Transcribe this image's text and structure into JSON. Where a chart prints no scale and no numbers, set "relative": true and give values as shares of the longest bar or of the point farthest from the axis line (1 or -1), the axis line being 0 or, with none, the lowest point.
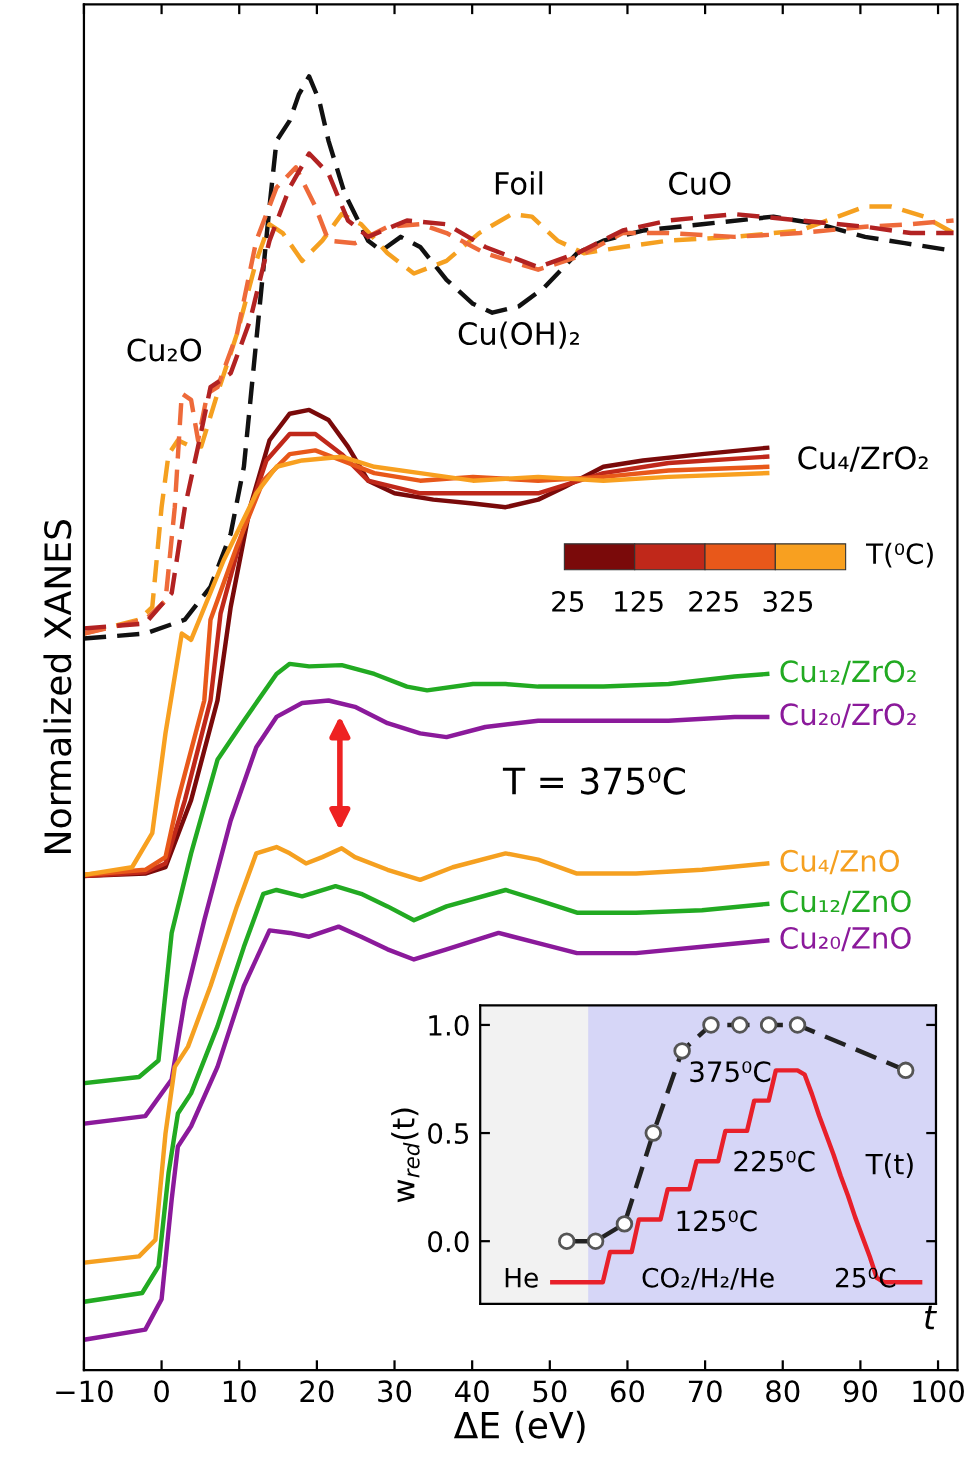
{
  "chart_data": [
    {
      "type": "line",
      "xlabel": "ΔE (eV)",
      "ylabel": "Normalized XANES",
      "relative": true,
      "tick_labels": "x",
      "xlim": [
        -10,
        102.5
      ],
      "xticks": [
        {
          "value": -10,
          "label": "−10"
        },
        0,
        10,
        20,
        30,
        40,
        50,
        60,
        70,
        80,
        90,
        100
      ],
      "series": [
        {
          "color": "#111111",
          "line_style": "dashed",
          "x": [
            -10,
            -2.1,
            3.0,
            6.3,
            8.9,
            10.6,
            12.2,
            13.9,
            14.8,
            16.5,
            17.7,
            19.0,
            20.3,
            21.5,
            23.6,
            26.6,
            28.3,
            30.8,
            33.3,
            36.7,
            40.1,
            42.6,
            46.0,
            49.3,
            53.5,
            56.9,
            62.0,
            69.6,
            78.8,
            84.7,
            90.6,
            95.7,
            102
          ],
          "values": [
            0.555,
            0.559,
            0.57,
            0.596,
            0.638,
            0.691,
            0.791,
            0.897,
            0.949,
            0.965,
            0.986,
            1.0,
            0.981,
            0.949,
            0.907,
            0.87,
            0.862,
            0.873,
            0.865,
            0.839,
            0.82,
            0.813,
            0.818,
            0.833,
            0.86,
            0.87,
            0.878,
            0.883,
            0.889,
            0.883,
            0.873,
            0.868,
            0.862
          ]
        },
        {
          "color": "#f5a020",
          "line_style": "dashed",
          "x": [
            -10,
            -2.9,
            -1.2,
            0.0,
            0.9,
            2.1,
            3.8,
            5.1,
            7.2,
            9.7,
            12.2,
            13.9,
            15.6,
            18.1,
            20.7,
            23.2,
            25.7,
            29.1,
            32.5,
            36.7,
            40.9,
            45.1,
            47.7,
            51.0,
            54.4,
            59.4,
            65.3,
            73.8,
            82.2,
            90.6,
            94.0,
            98.2,
            102
          ],
          "values": [
            0.559,
            0.57,
            0.58,
            0.659,
            0.701,
            0.712,
            0.707,
            0.707,
            0.749,
            0.796,
            0.854,
            0.883,
            0.876,
            0.854,
            0.87,
            0.891,
            0.883,
            0.86,
            0.844,
            0.854,
            0.876,
            0.891,
            0.889,
            0.87,
            0.86,
            0.865,
            0.87,
            0.873,
            0.878,
            0.897,
            0.897,
            0.889,
            0.876
          ]
        },
        {
          "color": "#ee6a3a",
          "line_style": "dashed",
          "x": [
            -10,
            -2.1,
            0.5,
            1.7,
            2.6,
            3.8,
            4.7,
            5.9,
            7.2,
            9.7,
            12.2,
            14.8,
            17.3,
            19.8,
            21.5,
            24.9,
            29.1,
            33.3,
            36.7,
            41.7,
            48.5,
            53.5,
            59.4,
            65.3,
            73.8,
            82.2,
            90.6,
            96.5,
            102
          ],
          "values": [
            0.559,
            0.57,
            0.585,
            0.659,
            0.749,
            0.744,
            0.712,
            0.749,
            0.754,
            0.796,
            0.87,
            0.912,
            0.928,
            0.897,
            0.87,
            0.868,
            0.881,
            0.883,
            0.876,
            0.86,
            0.847,
            0.857,
            0.876,
            0.876,
            0.873,
            0.876,
            0.881,
            0.883,
            0.886
          ]
        },
        {
          "color": "#b22222",
          "line_style": "dashed",
          "x": [
            -10,
            -2.1,
            1.3,
            3.0,
            4.7,
            6.3,
            8.9,
            11.4,
            13.9,
            16.5,
            19.0,
            21.5,
            24.0,
            26.6,
            31.6,
            36.7,
            41.7,
            48.5,
            53.5,
            59.4,
            65.3,
            73.8,
            82.2,
            90.6,
            96.5,
            102
          ],
          "values": [
            0.563,
            0.567,
            0.591,
            0.659,
            0.707,
            0.754,
            0.765,
            0.807,
            0.87,
            0.912,
            0.939,
            0.923,
            0.886,
            0.873,
            0.886,
            0.883,
            0.865,
            0.849,
            0.86,
            0.878,
            0.886,
            0.891,
            0.886,
            0.881,
            0.876,
            0.876
          ]
        },
        {
          "color": "#7a0a0a",
          "line_style": "solid",
          "x": [
            -10,
            -2.1,
            0.5,
            3.8,
            7.2,
            8.9,
            11.4,
            13.9,
            16.5,
            19.0,
            21.5,
            24.0,
            26.6,
            30.0,
            35.0,
            40.1,
            44.3,
            48.5,
            51.9,
            56.9,
            62.0,
            69.6,
            78.0
          ],
          "values": [
            0.367,
            0.369,
            0.374,
            0.427,
            0.506,
            0.58,
            0.659,
            0.712,
            0.733,
            0.736,
            0.728,
            0.707,
            0.68,
            0.67,
            0.665,
            0.662,
            0.659,
            0.665,
            0.675,
            0.691,
            0.696,
            0.701,
            0.706
          ]
        },
        {
          "color": "#c0281a",
          "line_style": "solid",
          "x": [
            -10,
            -2.1,
            0.5,
            3.0,
            6.3,
            7.6,
            10.6,
            13.5,
            16.5,
            19.8,
            23.2,
            26.6,
            33.3,
            40.1,
            48.5,
            56.9,
            65.3,
            78.0
          ],
          "values": [
            0.367,
            0.37,
            0.377,
            0.427,
            0.506,
            0.575,
            0.643,
            0.696,
            0.717,
            0.717,
            0.701,
            0.68,
            0.67,
            0.67,
            0.67,
            0.686,
            0.694,
            0.699
          ]
        },
        {
          "color": "#e8581a",
          "line_style": "solid",
          "x": [
            -10,
            -2.1,
            0.5,
            2.1,
            5.5,
            6.3,
            9.7,
            13.1,
            16.5,
            19.8,
            23.2,
            27.4,
            33.3,
            40.1,
            48.5,
            56.9,
            65.3,
            78.0
          ],
          "values": [
            0.368,
            0.372,
            0.382,
            0.427,
            0.506,
            0.57,
            0.628,
            0.68,
            0.701,
            0.704,
            0.696,
            0.686,
            0.68,
            0.683,
            0.68,
            0.683,
            0.688,
            0.691
          ]
        },
        {
          "color": "#f8a020",
          "line_style": "solid",
          "x": [
            -10,
            -3.8,
            -1.2,
            0.5,
            2.6,
            3.8,
            8.0,
            12.2,
            14.8,
            18.1,
            23.2,
            27.4,
            33.3,
            40.1,
            48.5,
            56.9,
            65.3,
            78.0
          ],
          "values": [
            0.368,
            0.374,
            0.401,
            0.48,
            0.559,
            0.554,
            0.617,
            0.67,
            0.691,
            0.696,
            0.699,
            0.691,
            0.686,
            0.68,
            0.683,
            0.68,
            0.683,
            0.686
          ]
        },
        {
          "name": "Cu₁₂/ZrO₂",
          "color": "#22aa22",
          "line_style": "solid",
          "x": [
            -10,
            -2.9,
            -0.4,
            1.3,
            3.8,
            7.2,
            10.6,
            14.8,
            16.5,
            19.0,
            23.2,
            27.4,
            31.6,
            34.2,
            40.1,
            44.3,
            48.5,
            56.9,
            65.3,
            73.8,
            78.0
          ],
          "values": [
            0.203,
            0.208,
            0.221,
            0.322,
            0.385,
            0.459,
            0.49,
            0.527,
            0.535,
            0.533,
            0.534,
            0.527,
            0.517,
            0.514,
            0.519,
            0.519,
            0.517,
            0.517,
            0.519,
            0.525,
            0.527
          ]
        },
        {
          "name": "Cu₂₀/ZrO₂",
          "color": "#8b1a9b",
          "line_style": "solid",
          "x": [
            -10,
            -2.1,
            1.3,
            3.0,
            5.5,
            8.9,
            12.2,
            14.8,
            18.1,
            21.5,
            24.9,
            29.1,
            33.3,
            36.7,
            41.7,
            48.5,
            56.9,
            65.3,
            73.8,
            78.0
          ],
          "values": [
            0.171,
            0.177,
            0.206,
            0.269,
            0.332,
            0.411,
            0.469,
            0.493,
            0.504,
            0.506,
            0.501,
            0.488,
            0.48,
            0.477,
            0.485,
            0.49,
            0.49,
            0.49,
            0.493,
            0.493
          ]
        },
        {
          "name": "Cu₄/ZnO",
          "color": "#f5a020",
          "line_style": "solid",
          "x": [
            -10,
            -2.9,
            -0.8,
            0.5,
            1.7,
            3.4,
            6.3,
            9.7,
            12.2,
            14.8,
            16.5,
            18.6,
            20.7,
            23.2,
            24.9,
            29.1,
            33.3,
            37.5,
            44.3,
            48.5,
            53.5,
            61.1,
            69.6,
            78.0
          ],
          "values": [
            0.061,
            0.066,
            0.079,
            0.163,
            0.216,
            0.232,
            0.28,
            0.343,
            0.385,
            0.39,
            0.385,
            0.377,
            0.382,
            0.389,
            0.382,
            0.372,
            0.364,
            0.374,
            0.385,
            0.38,
            0.369,
            0.369,
            0.372,
            0.377
          ]
        },
        {
          "name": "Cu₁₂/ZnO",
          "color": "#22aa22",
          "line_style": "solid",
          "x": [
            -10,
            -2.5,
            -0.4,
            0.9,
            2.1,
            3.8,
            7.2,
            10.6,
            13.1,
            14.8,
            18.1,
            22.4,
            25.7,
            29.1,
            32.5,
            36.7,
            44.3,
            48.5,
            53.5,
            61.1,
            69.6,
            78.0
          ],
          "values": [
            0.03,
            0.037,
            0.058,
            0.132,
            0.179,
            0.195,
            0.248,
            0.311,
            0.353,
            0.356,
            0.351,
            0.359,
            0.353,
            0.343,
            0.332,
            0.343,
            0.356,
            0.348,
            0.338,
            0.338,
            0.34,
            0.345
          ]
        },
        {
          "name": "Cu₂₀/ZnO",
          "color": "#8b1a9b",
          "line_style": "solid",
          "x": [
            -10,
            -2.1,
            0.0,
            1.3,
            2.1,
            3.8,
            7.2,
            10.6,
            13.9,
            16.5,
            19.0,
            22.8,
            25.7,
            29.1,
            32.5,
            36.7,
            43.4,
            48.5,
            53.5,
            61.1,
            69.6,
            78.0
          ],
          "values": [
            0,
            0.008,
            0.032,
            0.111,
            0.153,
            0.169,
            0.216,
            0.28,
            0.324,
            0.322,
            0.319,
            0.327,
            0.319,
            0.309,
            0.301,
            0.309,
            0.322,
            0.314,
            0.306,
            0.306,
            0.311,
            0.316
          ]
        }
      ],
      "annotations": [
        "Cu₂O",
        "Foil",
        "CuO",
        "Cu(OH)₂",
        "Cu₄/ZrO₂",
        "T = 375⁰C",
        "25",
        "125",
        "225",
        "325",
        "T(⁰C)"
      ]
    },
    {
      "type": "line",
      "xlabel": "t",
      "ylabel": "w$_{red}$(t)",
      "tick_labels": "y",
      "categories": [
        null,
        null,
        null,
        null,
        null,
        null,
        null,
        null,
        null,
        null,
        null,
        null,
        null,
        null,
        null,
        null,
        null,
        null,
        null,
        null,
        null,
        null,
        null,
        null,
        null,
        null,
        null,
        null,
        null,
        null,
        null,
        null,
        null,
        null,
        null,
        null,
        null,
        null,
        null,
        null,
        null,
        null,
        null,
        null,
        null,
        null,
        null,
        null,
        null,
        null,
        null,
        null
      ],
      "ylim": [
        -0.29,
        1.09
      ],
      "yticks": [
        {
          "value": 0,
          "label": "0.0"
        },
        {
          "value": 0.5,
          "label": "0.5"
        },
        {
          "value": 1,
          "label": "1.0"
        }
      ],
      "series": [
        {
          "color": "#222222",
          "line_style": "dashed",
          "marker": "circle",
          "values": [
            null,
            null,
            0,
            null,
            null,
            null,
            0,
            null,
            null,
            null,
            0.08,
            null,
            null,
            null,
            0.5,
            null,
            null,
            null,
            0.88,
            null,
            null,
            null,
            1.0,
            null,
            null,
            null,
            1.0,
            null,
            null,
            null,
            1.0,
            null,
            null,
            null,
            1.0,
            null,
            null,
            null,
            null,
            null,
            null,
            null,
            null,
            null,
            null,
            null,
            null,
            null,
            null,
            0.79,
            null,
            null
          ]
        },
        {
          "color": "#e8202a",
          "line_style": "solid",
          "values": [
            -0.19,
            -0.19,
            -0.19,
            -0.19,
            -0.19,
            -0.19,
            -0.19,
            -0.19,
            -0.05,
            -0.05,
            -0.05,
            -0.05,
            0.1,
            0.1,
            0.1,
            0.1,
            0.24,
            0.24,
            0.24,
            0.24,
            0.37,
            0.37,
            0.37,
            0.37,
            0.51,
            0.51,
            0.51,
            0.51,
            0.65,
            0.65,
            0.65,
            0.79,
            0.79,
            0.79,
            0.79,
            0.77,
            0.68,
            0.58,
            0.49,
            0.4,
            0.3,
            0.21,
            0.11,
            0.02,
            -0.07,
            -0.17,
            -0.19,
            -0.19,
            -0.19,
            -0.19,
            -0.19,
            -0.19
          ]
        }
      ],
      "annotations": [
        "375⁰C",
        "225⁰C",
        "125⁰C",
        "25⁰C",
        "T(t)",
        "He",
        "CO₂/H₂/He"
      ]
    }
  ]
}
